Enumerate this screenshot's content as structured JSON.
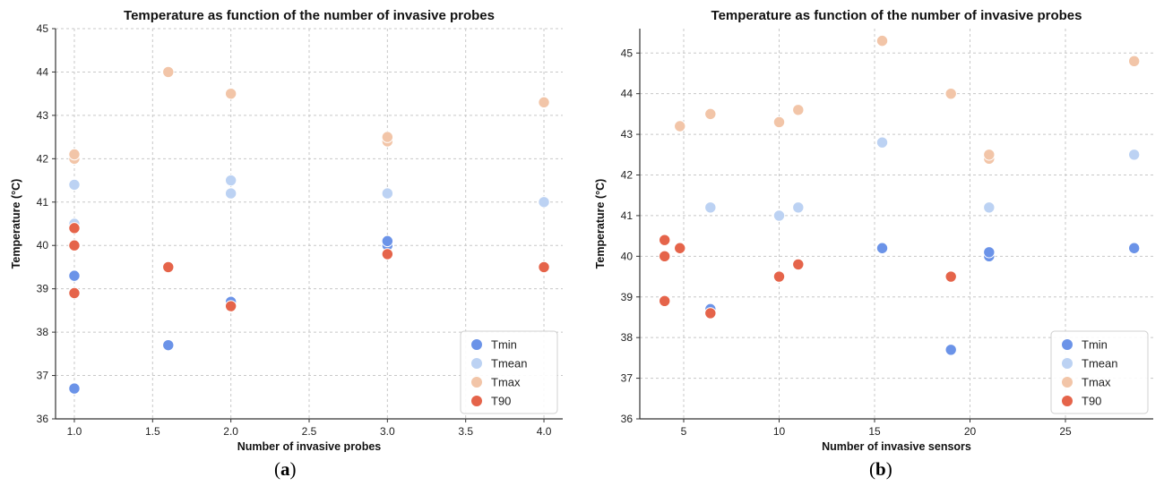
{
  "colors": {
    "Tmin": "#6b93e8",
    "Tmean": "#bcd2f3",
    "Tmax": "#f2c5a8",
    "T90": "#e5644a",
    "grid": "#c8c8c8",
    "axis": "#333333"
  },
  "captions": {
    "a_open": "(",
    "a_letter": "a",
    "a_close": ")",
    "b_open": "(",
    "b_letter": "b",
    "b_close": ")"
  },
  "chart_data": [
    {
      "type": "scatter",
      "title": "Temperature as function of the number of invasive probes",
      "xlabel": "Number of invasive probes",
      "ylabel": "Temperature (°C)",
      "xlim": [
        0.88,
        4.12
      ],
      "ylim": [
        36,
        45
      ],
      "xticks": [
        "1.0",
        "1.5",
        "2.0",
        "2.5",
        "3.0",
        "3.5",
        "4.0"
      ],
      "xtick_values": [
        1.0,
        1.5,
        2.0,
        2.5,
        3.0,
        3.5,
        4.0
      ],
      "yticks": [
        "36",
        "37",
        "38",
        "39",
        "40",
        "41",
        "42",
        "43",
        "44",
        "45"
      ],
      "ytick_values": [
        36,
        37,
        38,
        39,
        40,
        41,
        42,
        43,
        44,
        45
      ],
      "grid": true,
      "legend_position": "bottom-right",
      "series": [
        {
          "name": "Tmin",
          "points": [
            [
              1.0,
              36.7
            ],
            [
              1.0,
              39.3
            ],
            [
              1.0,
              40.0
            ],
            [
              1.6,
              37.7
            ],
            [
              2.0,
              38.7
            ],
            [
              3.0,
              40.0
            ],
            [
              3.0,
              40.1
            ],
            [
              4.0,
              39.5
            ]
          ]
        },
        {
          "name": "Tmean",
          "points": [
            [
              1.0,
              40.5
            ],
            [
              1.0,
              41.4
            ],
            [
              1.6,
              39.5
            ],
            [
              2.0,
              41.2
            ],
            [
              2.0,
              41.5
            ],
            [
              3.0,
              41.2
            ],
            [
              4.0,
              41.0
            ]
          ]
        },
        {
          "name": "Tmax",
          "points": [
            [
              1.0,
              42.0
            ],
            [
              1.0,
              42.1
            ],
            [
              1.6,
              44.0
            ],
            [
              2.0,
              43.5
            ],
            [
              3.0,
              42.4
            ],
            [
              3.0,
              42.5
            ],
            [
              4.0,
              43.3
            ]
          ]
        },
        {
          "name": "T90",
          "points": [
            [
              1.0,
              38.9
            ],
            [
              1.0,
              40.0
            ],
            [
              1.0,
              40.4
            ],
            [
              1.6,
              39.5
            ],
            [
              2.0,
              38.6
            ],
            [
              3.0,
              39.8
            ],
            [
              4.0,
              39.5
            ]
          ]
        }
      ]
    },
    {
      "type": "scatter",
      "title": "Temperature as function of the number of invasive probes",
      "xlabel": "Number of invasive sensors",
      "ylabel": "Temperature (°C)",
      "xlim": [
        2.7,
        29.6
      ],
      "ylim": [
        36,
        45.6
      ],
      "xticks": [
        "5",
        "10",
        "15",
        "20",
        "25"
      ],
      "xtick_values": [
        5,
        10,
        15,
        20,
        25
      ],
      "yticks": [
        "36",
        "37",
        "38",
        "39",
        "40",
        "41",
        "42",
        "43",
        "44",
        "45"
      ],
      "ytick_values": [
        36,
        37,
        38,
        39,
        40,
        41,
        42,
        43,
        44,
        45
      ],
      "grid": true,
      "legend_position": "bottom-right",
      "series": [
        {
          "name": "Tmin",
          "points": [
            [
              4,
              40.4
            ],
            [
              4,
              40.0
            ],
            [
              4,
              38.9
            ],
            [
              6.4,
              38.7
            ],
            [
              15.4,
              40.2
            ],
            [
              19,
              37.7
            ],
            [
              21,
              40.0
            ],
            [
              21,
              40.1
            ],
            [
              28.6,
              40.2
            ]
          ]
        },
        {
          "name": "Tmean",
          "points": [
            [
              6.4,
              41.2
            ],
            [
              10,
              41.0
            ],
            [
              11,
              41.2
            ],
            [
              15.4,
              42.8
            ],
            [
              21,
              41.2
            ],
            [
              28.6,
              42.5
            ]
          ]
        },
        {
          "name": "Tmax",
          "points": [
            [
              4.8,
              43.2
            ],
            [
              6.4,
              43.5
            ],
            [
              10,
              43.3
            ],
            [
              11,
              43.6
            ],
            [
              15.4,
              45.3
            ],
            [
              19,
              44.0
            ],
            [
              21,
              42.4
            ],
            [
              21,
              42.5
            ],
            [
              28.6,
              44.8
            ]
          ]
        },
        {
          "name": "T90",
          "points": [
            [
              4,
              40.4
            ],
            [
              4,
              40.0
            ],
            [
              4,
              38.9
            ],
            [
              4.8,
              40.2
            ],
            [
              6.4,
              38.6
            ],
            [
              10,
              39.5
            ],
            [
              11,
              39.8
            ],
            [
              19,
              39.5
            ]
          ]
        }
      ]
    }
  ]
}
